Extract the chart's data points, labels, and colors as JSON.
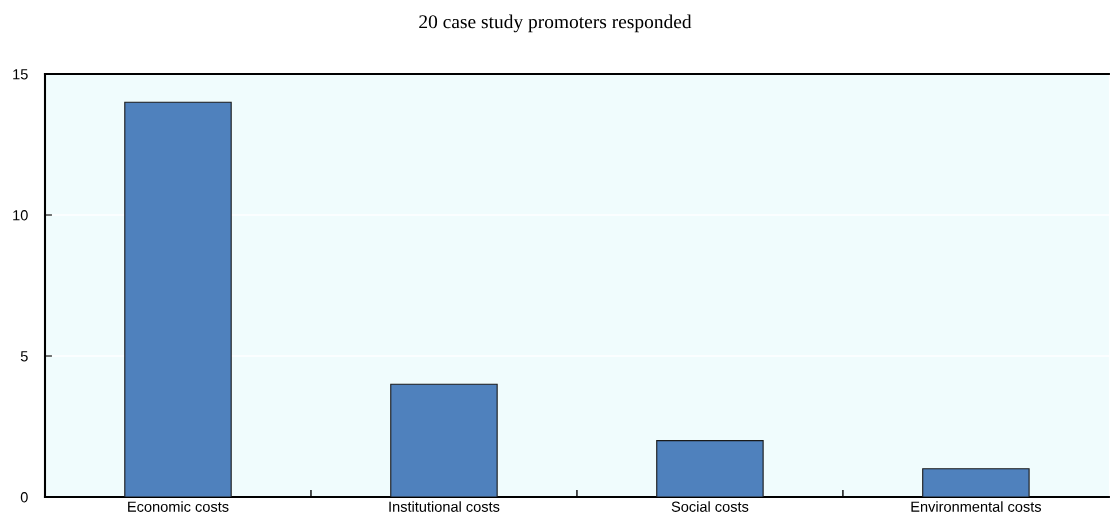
{
  "chart_data": {
    "type": "bar",
    "title": "20 case study promoters responded",
    "categories": [
      "Economic costs",
      "Institutional costs",
      "Social costs",
      "Environmental costs"
    ],
    "values": [
      14,
      4,
      2,
      1
    ],
    "color": "#4f81bd",
    "ylim": [
      0,
      15
    ],
    "yticks": [
      0,
      5,
      10,
      15
    ],
    "grid": "y"
  }
}
